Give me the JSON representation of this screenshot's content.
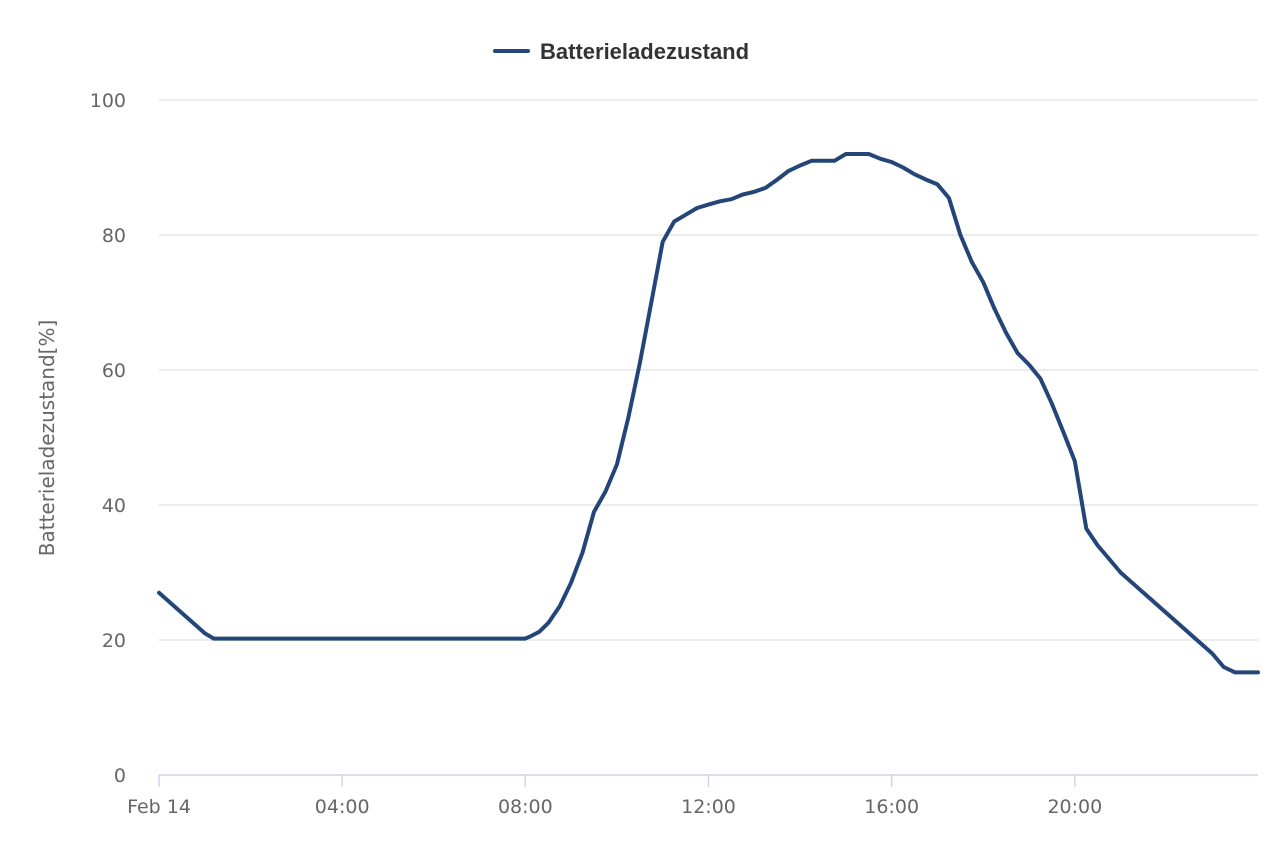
{
  "chart_data": {
    "type": "line",
    "title": "",
    "xlabel": "",
    "ylabel": "Batterieladezustand[%]",
    "legend": {
      "position": "top-center",
      "entries": [
        "Batterieladezustand"
      ]
    },
    "xlim": [
      0,
      24
    ],
    "ylim": [
      0,
      100
    ],
    "grid": true,
    "x_ticks": [
      {
        "value": 0,
        "label": "Feb 14"
      },
      {
        "value": 4,
        "label": "04:00"
      },
      {
        "value": 8,
        "label": "08:00"
      },
      {
        "value": 12,
        "label": "12:00"
      },
      {
        "value": 16,
        "label": "16:00"
      },
      {
        "value": 20,
        "label": "20:00"
      }
    ],
    "y_ticks": [
      {
        "value": 0,
        "label": "0"
      },
      {
        "value": 20,
        "label": "20"
      },
      {
        "value": 40,
        "label": "40"
      },
      {
        "value": 60,
        "label": "60"
      },
      {
        "value": 80,
        "label": "80"
      },
      {
        "value": 100,
        "label": "100"
      }
    ],
    "x_unit": "hours since Feb 14 00:00",
    "series": [
      {
        "name": "Batterieladezustand",
        "color": "#234577",
        "x": [
          0,
          0.5,
          1.0,
          1.2,
          2,
          4,
          6,
          8,
          8.1,
          8.3,
          8.5,
          8.75,
          9.0,
          9.25,
          9.5,
          9.75,
          10.0,
          10.25,
          10.5,
          10.75,
          11.0,
          11.25,
          11.5,
          11.75,
          12.0,
          12.25,
          12.5,
          12.75,
          13.0,
          13.25,
          13.5,
          13.75,
          14.0,
          14.25,
          14.5,
          14.75,
          15.0,
          15.25,
          15.5,
          15.75,
          16.0,
          16.25,
          16.5,
          16.75,
          17.0,
          17.25,
          17.5,
          17.75,
          18.0,
          18.25,
          18.5,
          18.75,
          19.0,
          19.25,
          19.5,
          19.75,
          20.0,
          20.25,
          20.5,
          20.75,
          21.0,
          21.5,
          22.0,
          22.5,
          23.0,
          23.25,
          23.5,
          23.75,
          24.0
        ],
        "values": [
          27,
          24,
          21,
          20.2,
          20.2,
          20.2,
          20.2,
          20.2,
          20.5,
          21.2,
          22.5,
          25,
          28.5,
          33,
          39,
          42,
          46,
          53,
          61,
          70,
          79,
          82,
          83,
          84,
          84.5,
          85,
          85.3,
          86,
          86.4,
          87,
          88.2,
          89.5,
          90.3,
          91,
          91,
          91,
          92,
          92,
          92,
          91.3,
          90.8,
          90,
          89,
          88.2,
          87.5,
          85.5,
          80,
          76,
          73,
          69,
          65.5,
          62.5,
          60.8,
          58.7,
          55,
          50.8,
          46.5,
          36.5,
          34,
          32,
          30,
          27,
          24,
          21,
          18,
          16,
          15.2,
          15.2,
          15.2
        ]
      }
    ]
  }
}
